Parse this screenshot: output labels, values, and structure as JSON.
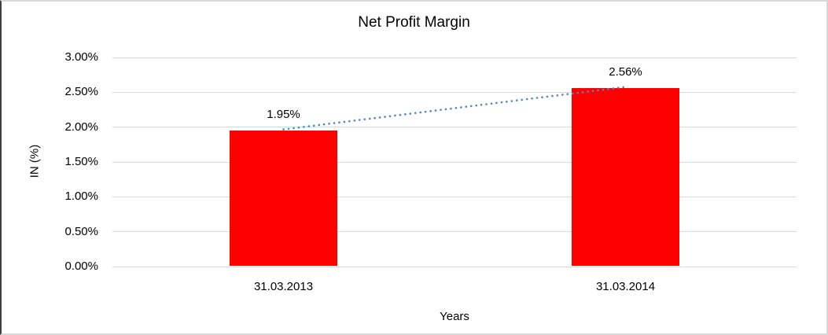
{
  "chart_data": {
    "type": "bar",
    "title": "Net Profit Margin",
    "xlabel": "Years",
    "ylabel": "IN (%)",
    "categories": [
      "31.03.2013",
      "31.03.2014"
    ],
    "values": [
      1.95,
      2.56
    ],
    "data_labels": [
      "1.95%",
      "2.56%"
    ],
    "ylim": [
      0,
      3
    ],
    "ytick_step": 0.5,
    "ytick_labels": [
      "0.00%",
      "0.50%",
      "1.00%",
      "1.50%",
      "2.00%",
      "2.50%",
      "3.00%"
    ],
    "grid": true,
    "legend_position": "none",
    "bar_color": "#ff0000",
    "gridline_color": "#d9d9d9",
    "trendline": {
      "type": "linear",
      "style": "dotted",
      "color": "#4f86c6"
    }
  }
}
